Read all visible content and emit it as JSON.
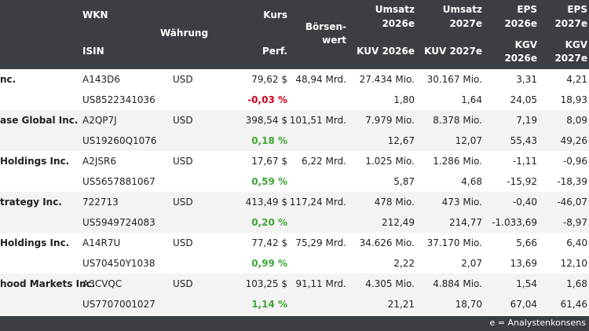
{
  "header": {
    "wkn": "WKN",
    "isin": "ISIN",
    "waehrung": "Währung",
    "kurs": "Kurs",
    "perf": "Perf.",
    "boersenwert_1": "Börsen-",
    "boersenwert_2": "wert",
    "umsatz_2026_1": "Umsatz",
    "umsatz_2026_2": "2026e",
    "kuv_2026": "KUV 2026e",
    "umsatz_2027_1": "Umsatz",
    "umsatz_2027_2": "2027e",
    "kuv_2027": "KUV 2027e",
    "eps_2026_1": "EPS",
    "eps_2026_2": "2026e",
    "kgv_2026_1": "KGV",
    "kgv_2026_2": "2026e",
    "eps_2027_1": "EPS",
    "eps_2027_2": "2027e",
    "kgv_2027_1": "KGV",
    "kgv_2027_2": "2027e"
  },
  "rows": [
    {
      "name": "nc.",
      "wkn": "A143D6",
      "currency": "USD",
      "kurs": "79,62 $",
      "mcap": "48,94 Mrd.",
      "u26": "27.434 Mio.",
      "u27": "30.167 Mio.",
      "eps26": "3,31",
      "eps27": "4,21",
      "isin": "US8522341036",
      "perf": "-0,03 %",
      "perf_dir": "neg",
      "kuv26": "1,80",
      "kuv27": "1,64",
      "kgv26": "24,05",
      "kgv27": "18,93"
    },
    {
      "name": "ase Global Inc.",
      "wkn": "A2QP7J",
      "currency": "USD",
      "kurs": "398,54 $",
      "mcap": "101,51 Mrd.",
      "u26": "7.979 Mio.",
      "u27": "8.378 Mio.",
      "eps26": "7,19",
      "eps27": "8,09",
      "isin": "US19260Q1076",
      "perf": "0,18 %",
      "perf_dir": "pos",
      "kuv26": "12,67",
      "kuv27": "12,07",
      "kgv26": "55,43",
      "kgv27": "49,26"
    },
    {
      "name": "Holdings Inc.",
      "wkn": "A2JSR6",
      "currency": "USD",
      "kurs": "17,67 $",
      "mcap": "6,22 Mrd.",
      "u26": "1.025 Mio.",
      "u27": "1.286 Mio.",
      "eps26": "-1,11",
      "eps27": "-0,96",
      "isin": "US5657881067",
      "perf": "0,59 %",
      "perf_dir": "pos",
      "kuv26": "5,87",
      "kuv27": "4,68",
      "kgv26": "-15,92",
      "kgv27": "-18,39"
    },
    {
      "name": "trategy Inc.",
      "wkn": "722713",
      "currency": "USD",
      "kurs": "413,49 $",
      "mcap": "117,24 Mrd.",
      "u26": "478 Mio.",
      "u27": "473 Mio.",
      "eps26": "-0,40",
      "eps27": "-46,07",
      "isin": "US5949724083",
      "perf": "0,20 %",
      "perf_dir": "pos",
      "kuv26": "212,49",
      "kuv27": "214,77",
      "kgv26": "-1.033,69",
      "kgv27": "-8,97"
    },
    {
      "name": "Holdings Inc.",
      "wkn": "A14R7U",
      "currency": "USD",
      "kurs": "77,42 $",
      "mcap": "75,29 Mrd.",
      "u26": "34.626 Mio.",
      "u27": "37.170 Mio.",
      "eps26": "5,66",
      "eps27": "6,40",
      "isin": "US70450Y1038",
      "perf": "0,99 %",
      "perf_dir": "pos",
      "kuv26": "2,22",
      "kuv27": "2,07",
      "kgv26": "13,69",
      "kgv27": "12,10"
    },
    {
      "name": "hood Markets Inc.",
      "wkn": "A3CVQC",
      "currency": "USD",
      "kurs": "103,25 $",
      "mcap": "91,11 Mrd.",
      "u26": "4.305 Mio.",
      "u27": "4.884 Mio.",
      "eps26": "1,54",
      "eps27": "1,68",
      "isin": "US7707001027",
      "perf": "1,14 %",
      "perf_dir": "pos",
      "kuv26": "21,21",
      "kuv27": "18,70",
      "kgv26": "67,04",
      "kgv27": "61,46"
    }
  ],
  "footer": {
    "note": "e = Analystenkonsens"
  }
}
